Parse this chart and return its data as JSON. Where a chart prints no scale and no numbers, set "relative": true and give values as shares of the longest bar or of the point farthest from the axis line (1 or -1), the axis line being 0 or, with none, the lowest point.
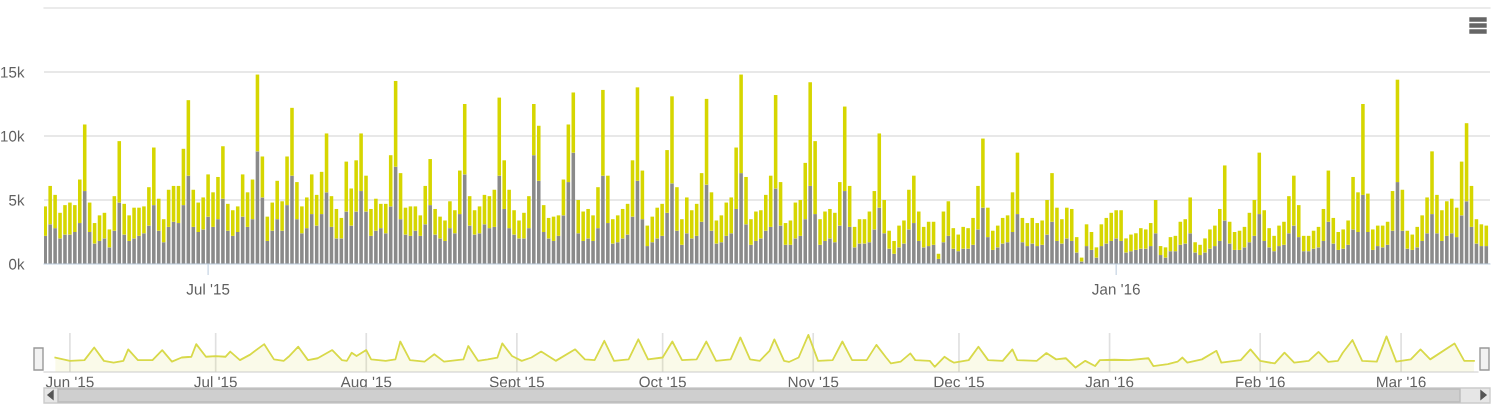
{
  "chart_data": [
    {
      "type": "bar",
      "stacked": true,
      "grid": "y",
      "x": [
        "2015-05-29",
        "2015-05-30",
        "2015-05-31",
        "2015-06-01",
        "2015-06-02",
        "2015-06-03",
        "2015-06-04",
        "2015-06-05",
        "2015-06-06",
        "2015-06-07",
        "2015-06-08",
        "2015-06-09",
        "2015-06-10",
        "2015-06-11",
        "2015-06-12",
        "2015-06-13",
        "2015-06-14",
        "2015-06-15",
        "2015-06-16",
        "2015-06-17",
        "2015-06-18",
        "2015-06-19",
        "2015-06-20",
        "2015-06-21",
        "2015-06-22",
        "2015-06-23",
        "2015-06-24",
        "2015-06-25",
        "2015-06-26",
        "2015-06-27",
        "2015-06-28",
        "2015-06-29",
        "2015-06-30",
        "2015-07-01",
        "2015-07-02",
        "2015-07-03",
        "2015-07-04",
        "2015-07-05",
        "2015-07-06",
        "2015-07-07",
        "2015-07-08",
        "2015-07-09",
        "2015-07-10",
        "2015-07-11",
        "2015-07-12",
        "2015-07-13",
        "2015-07-14",
        "2015-07-15",
        "2015-07-16",
        "2015-07-17",
        "2015-07-18",
        "2015-07-19",
        "2015-07-20",
        "2015-07-21",
        "2015-07-22",
        "2015-07-23",
        "2015-07-24",
        "2015-07-25",
        "2015-07-26",
        "2015-07-27",
        "2015-07-28",
        "2015-07-29",
        "2015-07-30",
        "2015-07-31",
        "2015-08-01",
        "2015-08-02",
        "2015-08-03",
        "2015-08-04",
        "2015-08-05",
        "2015-08-06",
        "2015-08-07",
        "2015-08-08",
        "2015-08-09",
        "2015-08-10",
        "2015-08-11",
        "2015-08-12",
        "2015-08-13",
        "2015-08-14",
        "2015-08-15",
        "2015-08-16",
        "2015-08-17",
        "2015-08-18",
        "2015-08-19",
        "2015-08-20",
        "2015-08-21",
        "2015-08-22",
        "2015-08-23",
        "2015-08-24",
        "2015-08-25",
        "2015-08-26",
        "2015-08-27",
        "2015-08-28",
        "2015-08-29",
        "2015-08-30",
        "2015-08-31",
        "2015-09-01",
        "2015-09-02",
        "2015-09-03",
        "2015-09-04",
        "2015-09-05",
        "2015-09-06",
        "2015-09-07",
        "2015-09-08",
        "2015-09-09",
        "2015-09-10",
        "2015-09-11",
        "2015-09-12",
        "2015-09-13",
        "2015-09-14",
        "2015-09-15",
        "2015-09-16",
        "2015-09-17",
        "2015-09-18",
        "2015-09-19",
        "2015-09-20",
        "2015-09-21",
        "2015-09-22",
        "2015-09-23",
        "2015-09-24",
        "2015-09-25",
        "2015-09-26",
        "2015-09-27",
        "2015-09-28",
        "2015-09-29",
        "2015-09-30",
        "2015-10-01",
        "2015-10-02",
        "2015-10-03",
        "2015-10-04",
        "2015-10-05",
        "2015-10-06",
        "2015-10-07",
        "2015-10-08",
        "2015-10-09",
        "2015-10-10",
        "2015-10-11",
        "2015-10-12",
        "2015-10-13",
        "2015-10-14",
        "2015-10-15",
        "2015-10-16",
        "2015-10-17",
        "2015-10-18",
        "2015-10-19",
        "2015-10-20",
        "2015-10-21",
        "2015-10-22",
        "2015-10-23",
        "2015-10-24",
        "2015-10-25",
        "2015-10-26",
        "2015-10-27",
        "2015-10-28",
        "2015-10-29",
        "2015-10-30",
        "2015-10-31",
        "2015-11-01",
        "2015-11-02",
        "2015-11-03",
        "2015-11-04",
        "2015-11-05",
        "2015-11-06",
        "2015-11-07",
        "2015-11-08",
        "2015-11-09",
        "2015-11-10",
        "2015-11-11",
        "2015-11-12",
        "2015-11-13",
        "2015-11-14",
        "2015-11-15",
        "2015-11-16",
        "2015-11-17",
        "2015-11-18",
        "2015-11-19",
        "2015-11-20",
        "2015-11-21",
        "2015-11-22",
        "2015-11-23",
        "2015-11-24",
        "2015-11-25",
        "2015-11-26",
        "2015-11-27",
        "2015-11-28",
        "2015-11-29",
        "2015-11-30",
        "2015-12-01",
        "2015-12-02",
        "2015-12-03",
        "2015-12-04",
        "2015-12-05",
        "2015-12-06",
        "2015-12-07",
        "2015-12-08",
        "2015-12-09",
        "2015-12-10",
        "2015-12-11",
        "2015-12-12",
        "2015-12-13",
        "2015-12-14",
        "2015-12-15",
        "2015-12-16",
        "2015-12-17",
        "2015-12-18",
        "2015-12-19",
        "2015-12-20",
        "2015-12-21",
        "2015-12-22",
        "2015-12-23",
        "2015-12-24",
        "2015-12-25",
        "2015-12-26",
        "2015-12-27",
        "2015-12-28",
        "2015-12-29",
        "2015-12-30",
        "2015-12-31",
        "2016-01-01",
        "2016-01-02",
        "2016-01-03",
        "2016-01-04",
        "2016-01-05",
        "2016-01-06",
        "2016-01-07",
        "2016-01-08",
        "2016-01-09",
        "2016-01-10",
        "2016-01-11",
        "2016-01-12",
        "2016-01-13",
        "2016-01-14",
        "2016-01-15",
        "2016-01-16",
        "2016-01-17",
        "2016-01-18",
        "2016-01-19",
        "2016-01-20",
        "2016-01-21",
        "2016-01-22",
        "2016-01-23",
        "2016-01-24",
        "2016-01-25",
        "2016-01-26",
        "2016-01-27",
        "2016-01-28",
        "2016-01-29",
        "2016-01-30",
        "2016-01-31",
        "2016-02-01",
        "2016-02-02",
        "2016-02-03",
        "2016-02-04",
        "2016-02-05",
        "2016-02-06",
        "2016-02-07",
        "2016-02-08",
        "2016-02-09",
        "2016-02-10",
        "2016-02-11",
        "2016-02-12",
        "2016-02-13",
        "2016-02-14",
        "2016-02-15",
        "2016-02-16",
        "2016-02-17",
        "2016-02-18",
        "2016-02-19",
        "2016-02-20",
        "2016-02-21",
        "2016-02-22",
        "2016-02-23",
        "2016-02-24",
        "2016-02-25",
        "2016-02-26",
        "2016-02-27",
        "2016-02-28",
        "2016-02-29",
        "2016-03-01",
        "2016-03-02",
        "2016-03-03",
        "2016-03-04",
        "2016-03-05",
        "2016-03-06",
        "2016-03-07",
        "2016-03-08",
        "2016-03-09",
        "2016-03-10",
        "2016-03-11",
        "2016-03-12",
        "2016-03-13",
        "2016-03-14",
        "2016-03-15",
        "2016-03-16"
      ],
      "series": [
        {
          "color": "#8a8a8a",
          "values": [
            2.2,
            3.1,
            2.8,
            2.0,
            2.3,
            2.3,
            2.5,
            3.2,
            5.7,
            2.5,
            1.6,
            1.8,
            2.0,
            1.3,
            2.6,
            4.8,
            2.3,
            1.8,
            2.0,
            2.2,
            2.4,
            3.0,
            4.6,
            2.6,
            1.7,
            2.9,
            3.3,
            3.2,
            4.6,
            6.9,
            2.9,
            2.5,
            2.7,
            3.7,
            2.9,
            3.5,
            5.1,
            2.6,
            2.2,
            2.5,
            3.7,
            2.9,
            3.5,
            8.8,
            5.2,
            1.8,
            2.6,
            3.5,
            2.6,
            4.6,
            6.9,
            3.5,
            2.4,
            2.8,
            3.9,
            3.0,
            3.9,
            5.6,
            2.9,
            2.0,
            2.0,
            4.1,
            3.0,
            4.1,
            5.7,
            4.1,
            2.2,
            2.6,
            2.8,
            2.4,
            4.5,
            7.6,
            3.5,
            2.3,
            2.2,
            2.6,
            2.2,
            3.1,
            4.6,
            2.3,
            2.0,
            1.8,
            2.8,
            2.4,
            3.9,
            7.0,
            3.0,
            2.3,
            2.4,
            3.1,
            2.8,
            2.9,
            6.9,
            4.3,
            2.8,
            2.3,
            2.0,
            2.0,
            2.8,
            8.5,
            6.5,
            2.5,
            2.0,
            1.8,
            2.2,
            3.8,
            6.4,
            8.7,
            2.4,
            1.8,
            2.0,
            1.8,
            2.8,
            6.9,
            3.2,
            1.6,
            1.7,
            2.0,
            2.3,
            3.7,
            6.5,
            3.5,
            1.4,
            1.7,
            2.0,
            2.2,
            4.0,
            6.3,
            2.6,
            1.5,
            2.4,
            2.0,
            2.2,
            3.3,
            6.2,
            2.6,
            1.6,
            1.7,
            2.2,
            2.4,
            4.3,
            7.1,
            3.1,
            1.5,
            1.8,
            2.0,
            2.6,
            2.9,
            5.9,
            3.0,
            1.5,
            1.5,
            2.0,
            2.2,
            3.5,
            6.1,
            3.9,
            1.5,
            1.8,
            2.0,
            1.7,
            3.0,
            5.7,
            2.9,
            1.3,
            1.6,
            1.6,
            1.7,
            2.7,
            4.4,
            2.4,
            1.2,
            0.8,
            1.3,
            1.6,
            2.7,
            3.2,
            1.8,
            1.3,
            1.4,
            1.5,
            0.4,
            1.7,
            2.2,
            1.2,
            1.0,
            1.2,
            1.2,
            1.5,
            2.7,
            4.4,
            2.1,
            1.1,
            1.3,
            1.6,
            1.7,
            2.5,
            3.9,
            1.7,
            1.4,
            1.6,
            1.4,
            1.5,
            2.3,
            3.3,
            1.8,
            1.6,
            2.0,
            1.8,
            0.9,
            0.2,
            1.4,
            1.1,
            0.5,
            1.4,
            1.6,
            1.8,
            2.0,
            1.8,
            0.9,
            1.0,
            1.1,
            1.2,
            1.2,
            1.4,
            2.4,
            0.7,
            0.5,
            1.0,
            1.0,
            1.5,
            1.6,
            2.4,
            0.9,
            0.7,
            0.9,
            1.2,
            1.4,
            1.8,
            3.4,
            1.6,
            1.1,
            1.1,
            1.3,
            1.7,
            2.2,
            3.9,
            1.8,
            1.3,
            1.0,
            1.4,
            1.5,
            2.4,
            3.0,
            2.1,
            1.0,
            1.0,
            1.2,
            1.3,
            1.8,
            3.3,
            1.6,
            1.1,
            1.2,
            1.5,
            2.7,
            2.5,
            5.4,
            2.5,
            1.1,
            1.4,
            1.3,
            1.5,
            2.6,
            6.4,
            2.6,
            1.2,
            1.1,
            1.3,
            1.8,
            2.4,
            3.9,
            2.4,
            1.8,
            2.2,
            2.4,
            2.1,
            3.8,
            4.9,
            2.9,
            1.6,
            1.4,
            1.4
          ]
        },
        {
          "color": "#d6d600",
          "values": [
            2.3,
            3.0,
            2.6,
            2.0,
            2.3,
            2.5,
            2.1,
            3.4,
            5.2,
            2.3,
            1.6,
            2.0,
            2.0,
            1.4,
            2.7,
            4.8,
            2.4,
            2.0,
            2.4,
            2.2,
            2.1,
            3.0,
            4.5,
            2.5,
            1.8,
            2.9,
            2.8,
            2.9,
            4.4,
            5.9,
            2.9,
            2.3,
            2.5,
            3.3,
            2.7,
            3.3,
            4.1,
            2.1,
            2.0,
            2.0,
            3.3,
            2.7,
            3.1,
            6.0,
            3.2,
            1.9,
            2.2,
            3.0,
            2.3,
            3.8,
            5.3,
            2.9,
            2.1,
            2.4,
            3.1,
            2.4,
            3.3,
            4.6,
            2.4,
            2.3,
            1.6,
            3.9,
            2.9,
            4.0,
            4.5,
            2.8,
            2.1,
            2.5,
            1.9,
            2.3,
            4.0,
            6.7,
            3.6,
            2.1,
            2.3,
            1.9,
            1.6,
            3.0,
            3.6,
            2.0,
            1.7,
            1.6,
            2.1,
            1.8,
            3.4,
            5.5,
            2.3,
            1.9,
            2.1,
            2.3,
            2.5,
            2.9,
            6.1,
            3.8,
            3.0,
            1.9,
            1.4,
            2.0,
            2.5,
            4.0,
            4.3,
            2.1,
            1.6,
            1.9,
            1.6,
            2.8,
            4.5,
            4.7,
            2.6,
            2.3,
            2.3,
            2.0,
            3.2,
            6.7,
            3.7,
            1.9,
            2.1,
            2.3,
            2.4,
            4.4,
            7.3,
            3.8,
            1.6,
            2.0,
            2.4,
            2.5,
            4.9,
            6.8,
            3.4,
            2.0,
            2.8,
            2.2,
            2.5,
            3.8,
            6.7,
            3.0,
            1.8,
            2.1,
            2.6,
            2.8,
            4.8,
            7.7,
            3.7,
            2.0,
            2.3,
            2.2,
            2.8,
            4.0,
            7.3,
            3.4,
            1.7,
            1.9,
            2.8,
            2.8,
            4.4,
            8.1,
            5.7,
            2.0,
            2.3,
            2.3,
            2.3,
            3.4,
            6.6,
            3.2,
            1.6,
            1.9,
            1.9,
            2.4,
            3.0,
            5.8,
            2.6,
            1.4,
            1.0,
            1.7,
            1.8,
            3.1,
            3.7,
            2.3,
            1.6,
            1.9,
            1.8,
            0.4,
            2.4,
            2.7,
            1.6,
            1.3,
            1.7,
            1.6,
            2.1,
            3.4,
            5.4,
            2.3,
            1.5,
            1.7,
            2.0,
            2.1,
            3.1,
            4.8,
            1.9,
            1.8,
            2.0,
            1.8,
            1.9,
            2.7,
            3.8,
            2.6,
            1.9,
            2.4,
            2.5,
            1.2,
            0.3,
            1.7,
            1.4,
            0.8,
            1.7,
            2.0,
            2.2,
            2.2,
            2.4,
            1.1,
            1.3,
            1.3,
            1.6,
            1.5,
            1.8,
            2.6,
            0.7,
            0.8,
            1.1,
            1.2,
            1.8,
            1.9,
            2.8,
            0.8,
            0.8,
            1.1,
            1.5,
            1.6,
            2.5,
            4.3,
            1.7,
            1.4,
            1.5,
            1.6,
            2.3,
            2.8,
            4.8,
            2.4,
            1.5,
            1.2,
            1.6,
            1.8,
            2.9,
            3.9,
            2.5,
            1.2,
            1.2,
            1.4,
            1.6,
            2.5,
            4.0,
            2.0,
            1.4,
            1.5,
            1.9,
            4.1,
            3.1,
            7.1,
            3.0,
            1.6,
            1.6,
            1.7,
            1.8,
            3.1,
            8.0,
            3.2,
            1.4,
            1.2,
            1.6,
            2.0,
            2.8,
            4.9,
            3.0,
            2.4,
            2.7,
            2.7,
            2.3,
            4.2,
            6.1,
            3.2,
            1.9,
            1.7,
            1.6
          ]
        }
      ],
      "xlim": [
        "2015-05-28T18:00",
        "2016-03-16T18:00"
      ],
      "xticks": [
        {
          "value": "2015-07-01",
          "label": "Jul '15"
        },
        {
          "value": "2016-01-01",
          "label": "Jan '16"
        }
      ],
      "ylim": [
        0,
        20
      ],
      "yticks": [
        {
          "value": 0,
          "label": "0k"
        },
        {
          "value": 5,
          "label": "5k"
        },
        {
          "value": 10,
          "label": "10k"
        },
        {
          "value": 15,
          "label": "15k"
        }
      ]
    },
    {
      "type": "area",
      "relative": true,
      "grid": "x",
      "x": [
        "2015-05-29",
        "2015-06-01",
        "2015-06-04",
        "2015-06-06",
        "2015-06-08",
        "2015-06-10",
        "2015-06-12",
        "2015-06-13",
        "2015-06-15",
        "2015-06-18",
        "2015-06-20",
        "2015-06-22",
        "2015-06-24",
        "2015-06-26",
        "2015-06-27",
        "2015-06-29",
        "2015-07-01",
        "2015-07-03",
        "2015-07-04",
        "2015-07-06",
        "2015-07-08",
        "2015-07-11",
        "2015-07-13",
        "2015-07-15",
        "2015-07-16",
        "2015-07-18",
        "2015-07-20",
        "2015-07-22",
        "2015-07-25",
        "2015-07-27",
        "2015-07-28",
        "2015-07-29",
        "2015-07-30",
        "2015-08-01",
        "2015-08-02",
        "2015-08-05",
        "2015-08-07",
        "2015-08-08",
        "2015-08-10",
        "2015-08-13",
        "2015-08-15",
        "2015-08-17",
        "2015-08-21",
        "2015-08-22",
        "2015-08-24",
        "2015-08-26",
        "2015-08-28",
        "2015-08-29",
        "2015-08-31",
        "2015-09-02",
        "2015-09-04",
        "2015-09-06",
        "2015-09-09",
        "2015-09-13",
        "2015-09-15",
        "2015-09-17",
        "2015-09-19",
        "2015-09-21",
        "2015-09-24",
        "2015-09-26",
        "2015-09-28",
        "2015-10-01",
        "2015-10-03",
        "2015-10-05",
        "2015-10-08",
        "2015-10-10",
        "2015-10-12",
        "2015-10-15",
        "2015-10-17",
        "2015-10-19",
        "2015-10-21",
        "2015-10-23",
        "2015-10-24",
        "2015-10-26",
        "2015-10-27",
        "2015-10-29",
        "2015-10-31",
        "2015-11-02",
        "2015-11-05",
        "2015-11-07",
        "2015-11-09",
        "2015-11-12",
        "2015-11-14",
        "2015-11-16",
        "2015-11-17",
        "2015-11-19",
        "2015-11-21",
        "2015-11-22",
        "2015-11-25",
        "2015-11-26",
        "2015-11-28",
        "2015-11-29",
        "2015-11-30",
        "2015-12-03",
        "2015-12-05",
        "2015-12-07",
        "2015-12-10",
        "2015-12-12",
        "2015-12-13",
        "2015-12-17",
        "2015-12-19",
        "2015-12-21",
        "2015-12-23",
        "2015-12-25",
        "2015-12-27",
        "2015-12-29",
        "2015-12-30",
        "2016-01-02",
        "2016-01-05",
        "2016-01-09",
        "2016-01-10",
        "2016-01-13",
        "2016-01-15",
        "2016-01-16",
        "2016-01-17",
        "2016-01-20",
        "2016-01-23",
        "2016-01-24",
        "2016-01-28",
        "2016-01-30",
        "2016-02-01",
        "2016-02-04",
        "2016-02-06",
        "2016-02-08",
        "2016-02-11",
        "2016-02-13",
        "2016-02-15",
        "2016-02-17",
        "2016-02-18",
        "2016-02-20",
        "2016-02-22",
        "2016-02-25",
        "2016-02-27",
        "2016-02-29",
        "2016-03-03",
        "2016-03-05",
        "2016-03-07",
        "2016-03-12",
        "2016-03-14",
        "2016-03-16"
      ],
      "series": [
        {
          "color": "#d8d94a",
          "values": [
            0.39,
            0.3,
            0.32,
            0.66,
            0.3,
            0.25,
            0.3,
            0.61,
            0.32,
            0.32,
            0.59,
            0.28,
            0.39,
            0.41,
            0.75,
            0.41,
            0.43,
            0.41,
            0.55,
            0.32,
            0.46,
            0.75,
            0.34,
            0.3,
            0.41,
            0.68,
            0.32,
            0.37,
            0.59,
            0.32,
            0.3,
            0.52,
            0.43,
            0.59,
            0.34,
            0.3,
            0.34,
            0.82,
            0.32,
            0.28,
            0.48,
            0.28,
            0.34,
            0.7,
            0.3,
            0.34,
            0.39,
            0.77,
            0.43,
            0.3,
            0.39,
            0.55,
            0.3,
            0.61,
            0.34,
            0.32,
            0.84,
            0.3,
            0.34,
            0.88,
            0.34,
            0.39,
            0.82,
            0.32,
            0.34,
            0.82,
            0.3,
            0.34,
            0.93,
            0.34,
            0.3,
            0.57,
            0.88,
            0.3,
            0.27,
            0.39,
            1.0,
            0.3,
            0.32,
            0.82,
            0.32,
            0.32,
            0.73,
            0.39,
            0.23,
            0.28,
            0.5,
            0.32,
            0.3,
            0.14,
            0.41,
            0.32,
            0.25,
            0.32,
            0.68,
            0.32,
            0.3,
            0.61,
            0.32,
            0.3,
            0.51,
            0.34,
            0.37,
            0.12,
            0.3,
            0.16,
            0.32,
            0.33,
            0.32,
            0.37,
            0.16,
            0.21,
            0.28,
            0.39,
            0.25,
            0.34,
            0.57,
            0.25,
            0.32,
            0.61,
            0.3,
            0.23,
            0.52,
            0.25,
            0.3,
            0.54,
            0.27,
            0.3,
            0.52,
            0.86,
            0.3,
            0.28,
            0.96,
            0.28,
            0.34,
            0.61,
            0.34,
            0.77,
            0.3,
            0.3
          ]
        }
      ],
      "xlim": [
        "2015-05-26T16:00",
        "2016-03-16T20:00"
      ],
      "xticks": [
        {
          "value": "2015-06-01",
          "label": "Jun '15"
        },
        {
          "value": "2015-07-01",
          "label": "Jul '15"
        },
        {
          "value": "2015-08-01",
          "label": "Aug '15"
        },
        {
          "value": "2015-09-01",
          "label": "Sept '15"
        },
        {
          "value": "2015-10-01",
          "label": "Oct '15"
        },
        {
          "value": "2015-11-01",
          "label": "Nov '15"
        },
        {
          "value": "2015-12-01",
          "label": "Dec '15"
        },
        {
          "value": "2016-01-01",
          "label": "Jan '16"
        },
        {
          "value": "2016-02-01",
          "label": "Feb '16"
        },
        {
          "value": "2016-03-01",
          "label": "Mar '16"
        }
      ]
    }
  ]
}
